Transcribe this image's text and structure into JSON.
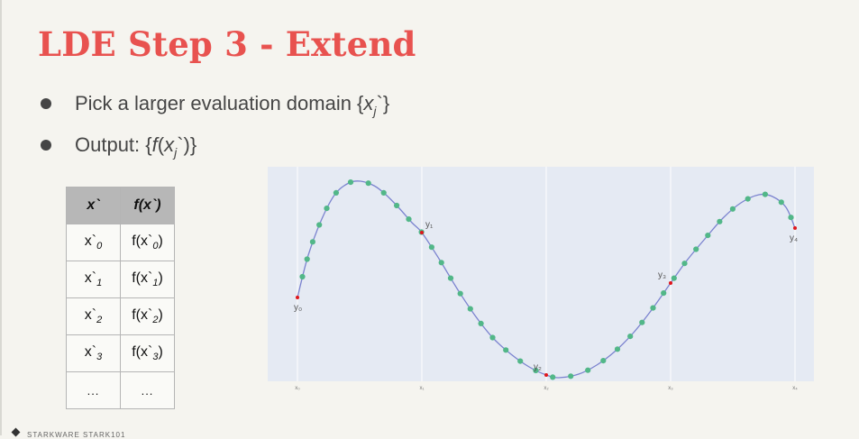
{
  "slide": {
    "title": "LDE Step 3 - Extend",
    "bullets": [
      {
        "prefix": "Pick a larger evaluation domain {",
        "var": "x",
        "sub": "j",
        "suffix": "`}"
      },
      {
        "prefix": "Output: {",
        "func": "f",
        "open": "(",
        "var": "x",
        "sub": "j",
        "suffix": "`)}"
      }
    ],
    "footer": "STARKWARE  STARK101"
  },
  "table": {
    "headers": [
      "x`",
      "f(x`)"
    ],
    "rows": [
      {
        "x": "x`",
        "x_sub": "0",
        "fx": "f(x`",
        "fx_sub": "0",
        "fx_close": ")"
      },
      {
        "x": "x`",
        "x_sub": "1",
        "fx": "f(x`",
        "fx_sub": "1",
        "fx_close": ")"
      },
      {
        "x": "x`",
        "x_sub": "2",
        "fx": "f(x`",
        "fx_sub": "2",
        "fx_close": ")"
      },
      {
        "x": "x`",
        "x_sub": "3",
        "fx": "f(x`",
        "fx_sub": "3",
        "fx_close": ")"
      }
    ],
    "ellipsis": "..."
  },
  "chart_data": {
    "type": "line",
    "x_tick_labels": [
      "x₀",
      "x₁",
      "x₂",
      "x₃",
      "x₄"
    ],
    "point_labels": [
      "y₀",
      "y₁",
      "y₂",
      "y₃",
      "y₄"
    ],
    "colors": {
      "background": "#e5eaf3",
      "curve": "#7b83cf",
      "eval_points": "#52b788",
      "original_points": "#e0161b",
      "gridline": "#ffffff"
    },
    "grid": true,
    "evaluation_points_count": 41
  }
}
